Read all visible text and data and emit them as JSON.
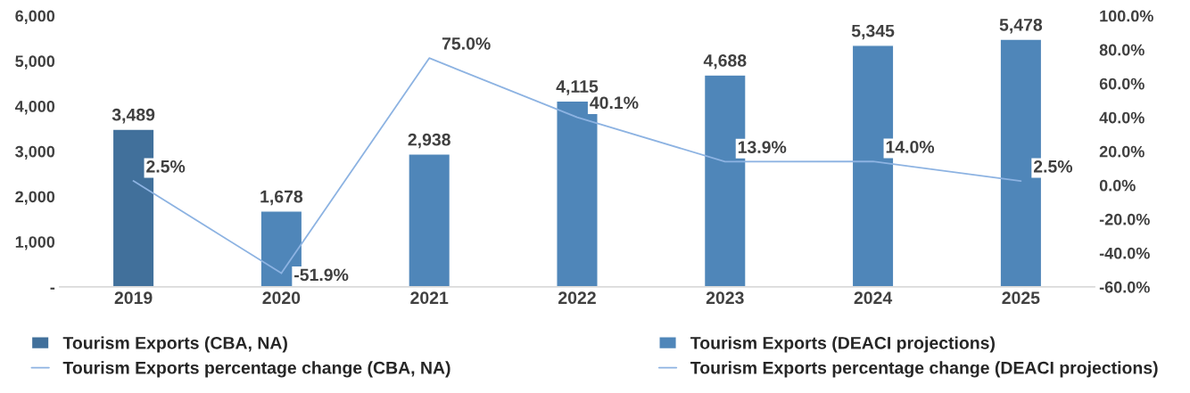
{
  "chart_data": {
    "type": "bar",
    "categories": [
      "2019",
      "2020",
      "2021",
      "2022",
      "2023",
      "2024",
      "2025"
    ],
    "series": [
      {
        "name": "Tourism Exports (CBA, NA)",
        "color": "#41709b",
        "values": [
          3489,
          null,
          null,
          null,
          null,
          null,
          null
        ],
        "value_labels": [
          "3,489",
          null,
          null,
          null,
          null,
          null,
          null
        ]
      },
      {
        "name": "Tourism Exports (DEACI projections)",
        "color": "#4f86b9",
        "values": [
          null,
          1678,
          2938,
          4115,
          4688,
          5345,
          5478
        ],
        "value_labels": [
          null,
          "1,678",
          "2,938",
          "4,115",
          "4,688",
          "5,345",
          "5,478"
        ]
      },
      {
        "name": "Tourism Exports percentage change (CBA, NA)",
        "type": "line",
        "axis": "y2",
        "color": "#8db3e2",
        "values": [
          2.5,
          -51.9,
          null,
          null,
          null,
          null,
          null
        ],
        "value_labels": [
          "2.5%",
          null,
          null,
          null,
          null,
          null,
          null
        ]
      },
      {
        "name": "Tourism Exports percentage change (DEACI projections)",
        "type": "line",
        "axis": "y2",
        "color": "#8db3e2",
        "values": [
          null,
          -51.9,
          75.0,
          40.1,
          13.9,
          14.0,
          2.5
        ],
        "value_labels": [
          null,
          "-51.9%",
          "75.0%",
          "40.1%",
          "13.9%",
          "14.0%",
          "2.5%"
        ]
      }
    ],
    "ylim": [
      0,
      6000
    ],
    "yticks": [
      {
        "value": 0,
        "label": "-"
      },
      {
        "value": 1000,
        "label": "1,000"
      },
      {
        "value": 2000,
        "label": "2,000"
      },
      {
        "value": 3000,
        "label": "3,000"
      },
      {
        "value": 4000,
        "label": "4,000"
      },
      {
        "value": 5000,
        "label": "5,000"
      },
      {
        "value": 6000,
        "label": "6,000"
      }
    ],
    "y2lim": [
      -60,
      100
    ],
    "y2ticks": [
      {
        "value": -60,
        "label": "-60.0%"
      },
      {
        "value": -40,
        "label": "-40.0%"
      },
      {
        "value": -20,
        "label": "-20.0%"
      },
      {
        "value": 0,
        "label": "0.0%"
      },
      {
        "value": 20,
        "label": "20.0%"
      },
      {
        "value": 40,
        "label": "40.0%"
      },
      {
        "value": 60,
        "label": "60.0%"
      },
      {
        "value": 80,
        "label": "80.0%"
      },
      {
        "value": 100,
        "label": "100.0%"
      }
    ],
    "grid": false,
    "legend": "bottom"
  }
}
